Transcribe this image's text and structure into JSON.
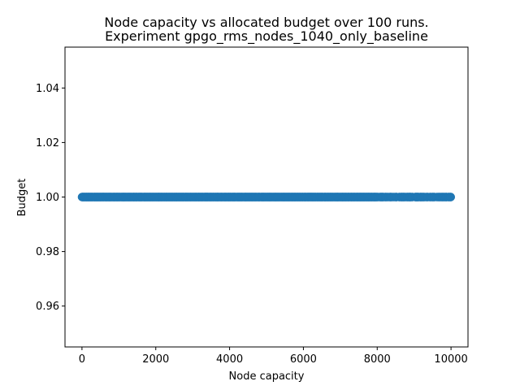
{
  "chart_data": {
    "type": "scatter",
    "title_line1": "Node capacity vs allocated budget over 100 runs.",
    "title_line2": "Experiment gpgo_rms_nodes_1040_only_baseline",
    "xlabel": "Node capacity",
    "ylabel": "Budget",
    "xlim": [
      -460,
      10460
    ],
    "ylim": [
      0.945,
      1.055
    ],
    "xticks": [
      0,
      2000,
      4000,
      6000,
      8000,
      10000
    ],
    "xtick_labels": [
      "0",
      "2000",
      "4000",
      "6000",
      "8000",
      "10000"
    ],
    "yticks": [
      0.96,
      0.98,
      1.0,
      1.02,
      1.04
    ],
    "ytick_labels": [
      "0.96",
      "0.98",
      "1.00",
      "1.02",
      "1.04"
    ],
    "grid": false,
    "legend": false,
    "marker_color": "#1f77b4",
    "points_summary": "Dense scatter of points at budget 1.00 across node capacities ~0 to ~10000",
    "x_start": 0,
    "x_end": 10000,
    "y_value": 1.0
  }
}
